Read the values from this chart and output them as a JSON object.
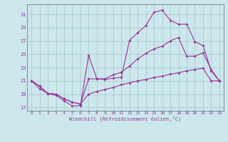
{
  "xlabel": "Windchill (Refroidissement éolien,°C)",
  "bg_color": "#cce8ec",
  "grid_color": "#aacccc",
  "line_color": "#993399",
  "xlim": [
    -0.5,
    23.5
  ],
  "ylim": [
    16.5,
    32.5
  ],
  "xticks": [
    0,
    1,
    2,
    3,
    4,
    5,
    6,
    7,
    8,
    9,
    10,
    11,
    12,
    13,
    14,
    15,
    16,
    17,
    18,
    19,
    20,
    21,
    22,
    23
  ],
  "yticks": [
    17,
    19,
    21,
    23,
    25,
    27,
    29,
    31
  ],
  "curve_top_x": [
    0,
    1,
    2,
    3,
    4,
    5,
    6,
    7,
    8,
    9,
    10,
    11,
    12,
    13,
    14,
    15,
    16,
    17,
    18,
    19,
    20,
    21,
    22,
    23
  ],
  "curve_top_y": [
    21.0,
    20.2,
    19.1,
    18.8,
    18.0,
    17.2,
    17.3,
    24.8,
    21.3,
    21.2,
    21.4,
    21.5,
    27.1,
    28.2,
    29.3,
    31.3,
    31.6,
    30.1,
    29.5,
    29.5,
    26.9,
    26.3,
    22.5,
    21.0
  ],
  "curve_mid_x": [
    0,
    1,
    2,
    3,
    4,
    5,
    6,
    7,
    8,
    9,
    10,
    11,
    12,
    13,
    14,
    15,
    16,
    17,
    18,
    19,
    20,
    21,
    22,
    23
  ],
  "curve_mid_y": [
    21.0,
    20.2,
    19.1,
    19.0,
    18.3,
    17.8,
    17.5,
    21.3,
    21.3,
    21.3,
    21.9,
    22.3,
    23.2,
    24.3,
    25.1,
    25.8,
    26.2,
    27.0,
    27.5,
    24.7,
    24.7,
    25.2,
    22.7,
    21.0
  ],
  "curve_bot_x": [
    0,
    1,
    2,
    3,
    4,
    5,
    6,
    7,
    8,
    9,
    10,
    11,
    12,
    13,
    14,
    15,
    16,
    17,
    18,
    19,
    20,
    21,
    22,
    23
  ],
  "curve_bot_y": [
    21.0,
    19.8,
    19.1,
    19.0,
    18.3,
    17.8,
    17.5,
    19.0,
    19.4,
    19.7,
    20.0,
    20.4,
    20.7,
    21.0,
    21.2,
    21.5,
    21.7,
    22.0,
    22.2,
    22.5,
    22.7,
    22.9,
    21.0,
    21.0
  ]
}
